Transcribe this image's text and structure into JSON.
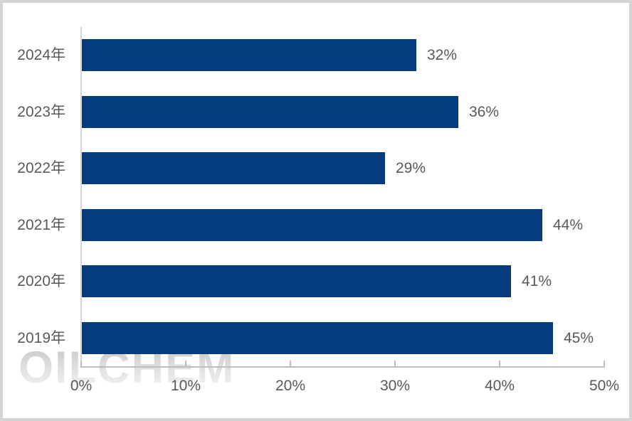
{
  "window": {
    "background": "#ffffff",
    "border_color": "#d3d3d3"
  },
  "chart_data": {
    "type": "bar",
    "orientation": "horizontal",
    "title": "",
    "xlabel": "",
    "ylabel": "",
    "categories": [
      "2024年",
      "2023年",
      "2022年",
      "2021年",
      "2020年",
      "2019年"
    ],
    "values": [
      32,
      36,
      29,
      44,
      41,
      45
    ],
    "data_labels": [
      "32%",
      "36%",
      "29%",
      "44%",
      "41%",
      "45%"
    ],
    "x_tick_labels": [
      "0%",
      "10%",
      "20%",
      "30%",
      "40%",
      "50%"
    ],
    "x_tick_values": [
      0,
      10,
      20,
      30,
      40,
      50
    ],
    "xlim": [
      0,
      50
    ],
    "grid": false,
    "legend": false,
    "bar_color": "#053c80",
    "label_color": "#595959",
    "axis_color": "#bdbdbd",
    "watermark": "OILCHEM"
  }
}
